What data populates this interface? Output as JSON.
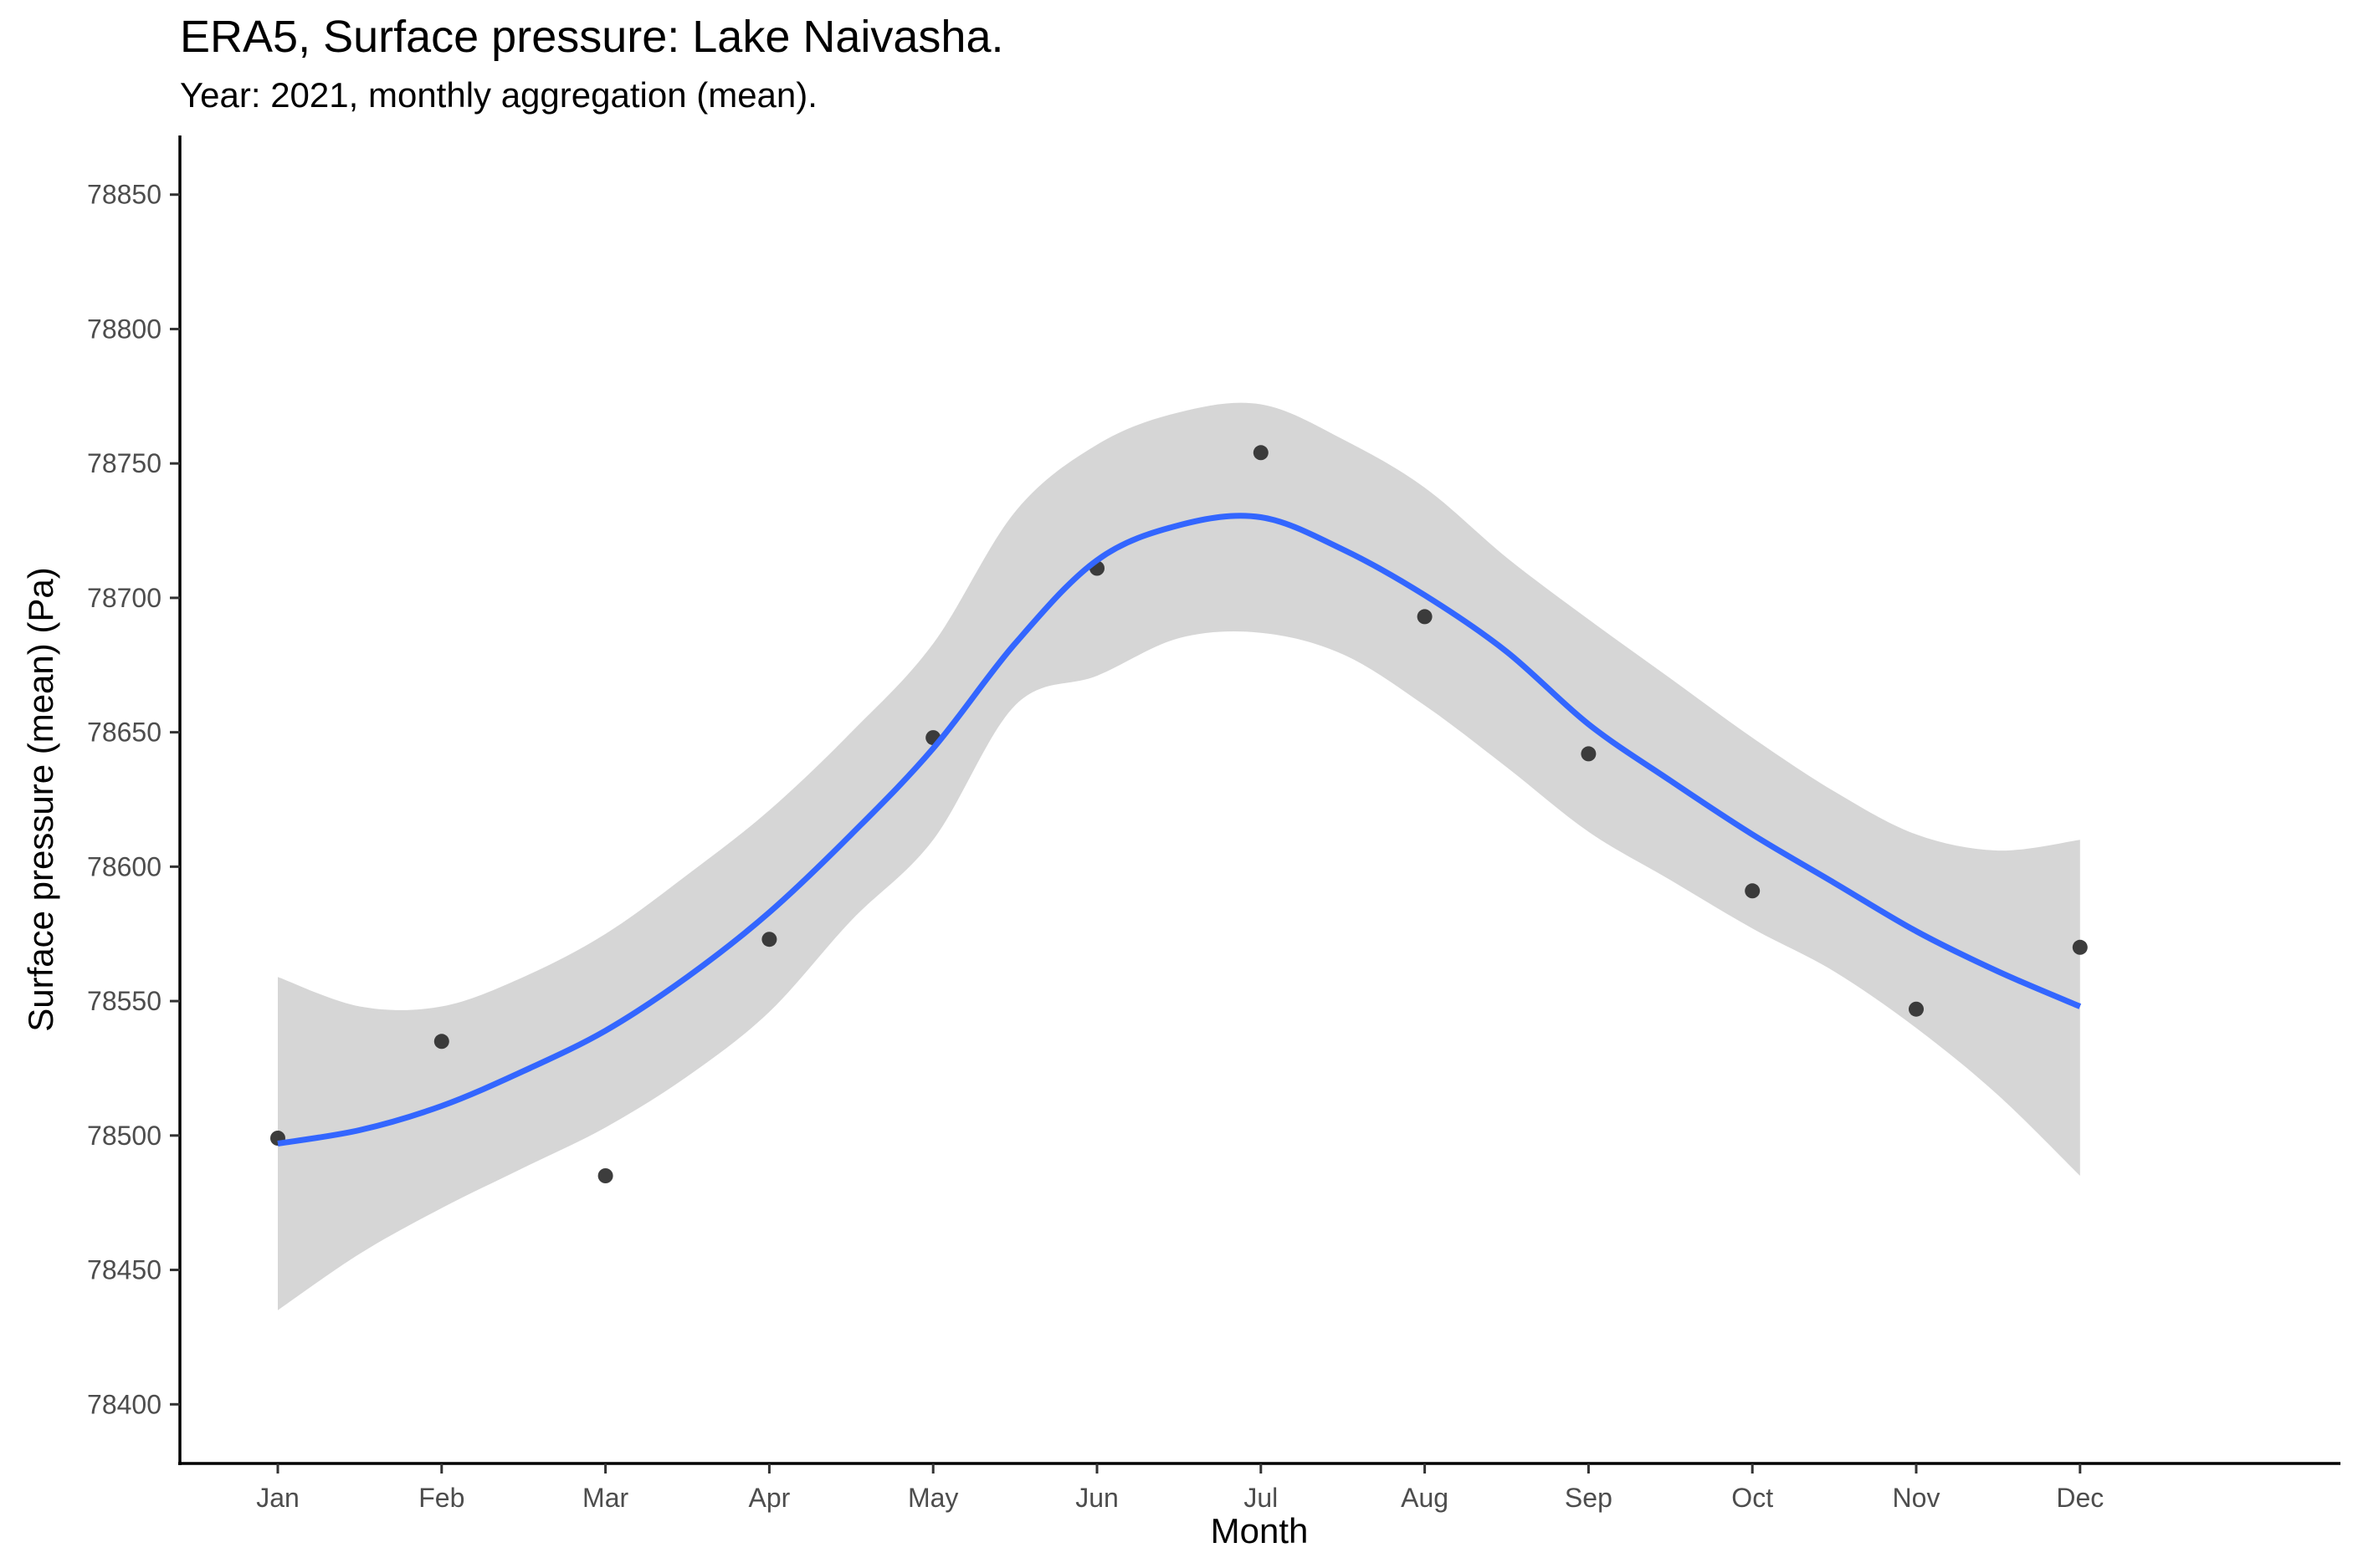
{
  "chart_data": {
    "type": "scatter",
    "title": "ERA5, Surface pressure: Lake Naivasha.",
    "subtitle": "Year: 2021, monthly aggregation (mean).",
    "xlabel": "Month",
    "ylabel": "Surface pressure (mean) (Pa)",
    "categories": [
      "Jan",
      "Feb",
      "Mar",
      "Apr",
      "May",
      "Jun",
      "Jul",
      "Aug",
      "Sep",
      "Oct",
      "Nov",
      "Dec"
    ],
    "yticks": [
      "78400",
      "78450",
      "78500",
      "78550",
      "78600",
      "78650",
      "78700",
      "78750",
      "78800",
      "78850"
    ],
    "ylim": [
      78378,
      78872
    ],
    "grid": false,
    "series": [
      {
        "kind": "points",
        "color": "#333333",
        "values": [
          78499,
          78535,
          78485,
          78573,
          78648,
          78711,
          78754,
          78693,
          78642,
          78591,
          78547,
          78570
        ]
      },
      {
        "kind": "smooth",
        "color": "#3366FF",
        "x": [
          1,
          1.5,
          2,
          2.5,
          3,
          3.5,
          4,
          4.5,
          5,
          5.5,
          6,
          6.5,
          7,
          7.5,
          8,
          8.5,
          9,
          9.5,
          10,
          10.5,
          11,
          11.5,
          12
        ],
        "values": [
          78497,
          78502,
          78511,
          78524,
          78539,
          78559,
          78583,
          78612,
          78644,
          78683,
          78714,
          78727,
          78730,
          78718,
          78701,
          78680,
          78653,
          78632,
          78612,
          78594,
          78576,
          78561,
          78548
        ],
        "band": {
          "color": "#d6d6d6",
          "lower": [
            78435,
            78456,
            78473,
            78488,
            78503,
            78522,
            78546,
            78580,
            78610,
            78660,
            78671,
            78685,
            78687,
            78679,
            78660,
            78637,
            78613,
            78595,
            78577,
            78561,
            78540,
            78515,
            78485
          ],
          "upper": [
            78559,
            78548,
            78548,
            78559,
            78575,
            78597,
            78621,
            78650,
            78683,
            78732,
            78757,
            78769,
            78772,
            78759,
            78741,
            78715,
            78692,
            78670,
            78648,
            78628,
            78612,
            78606,
            78610
          ]
        }
      }
    ]
  }
}
